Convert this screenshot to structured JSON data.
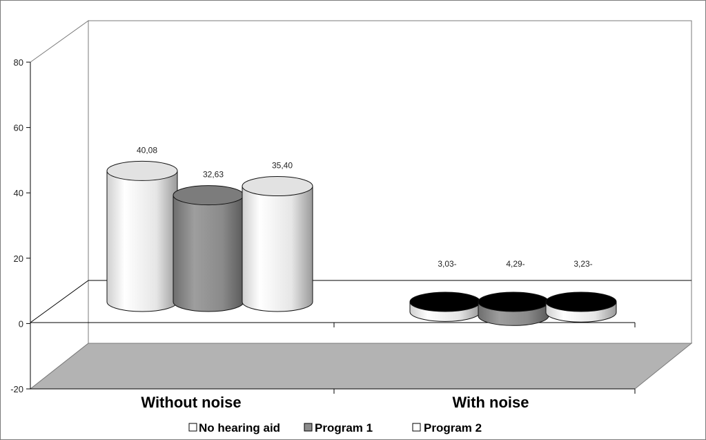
{
  "chart_data": {
    "type": "bar",
    "categories": [
      "Without noise",
      "With noise"
    ],
    "series": [
      {
        "name": "No hearing aid",
        "values": [
          40.08,
          -3.03
        ],
        "labels": [
          "40,08",
          "3,03-"
        ],
        "color": "#f0f0f0"
      },
      {
        "name": "Program 1",
        "values": [
          32.63,
          -4.29
        ],
        "labels": [
          "32,63",
          "4,29-"
        ],
        "color": "#8c8c8c"
      },
      {
        "name": "Program 2",
        "values": [
          35.4,
          -3.23
        ],
        "labels": [
          "35,40",
          "3,23-"
        ],
        "color": "#f0f0f0"
      }
    ],
    "y_ticks": [
      "80",
      "60",
      "40",
      "20",
      "0",
      "-20"
    ],
    "ylim": [
      -20,
      80
    ],
    "legend_position": "bottom",
    "grid": false,
    "colors": {
      "floor": "#b3b3b3",
      "top_negative": "#000000",
      "frame": "#7a7a7a"
    }
  }
}
